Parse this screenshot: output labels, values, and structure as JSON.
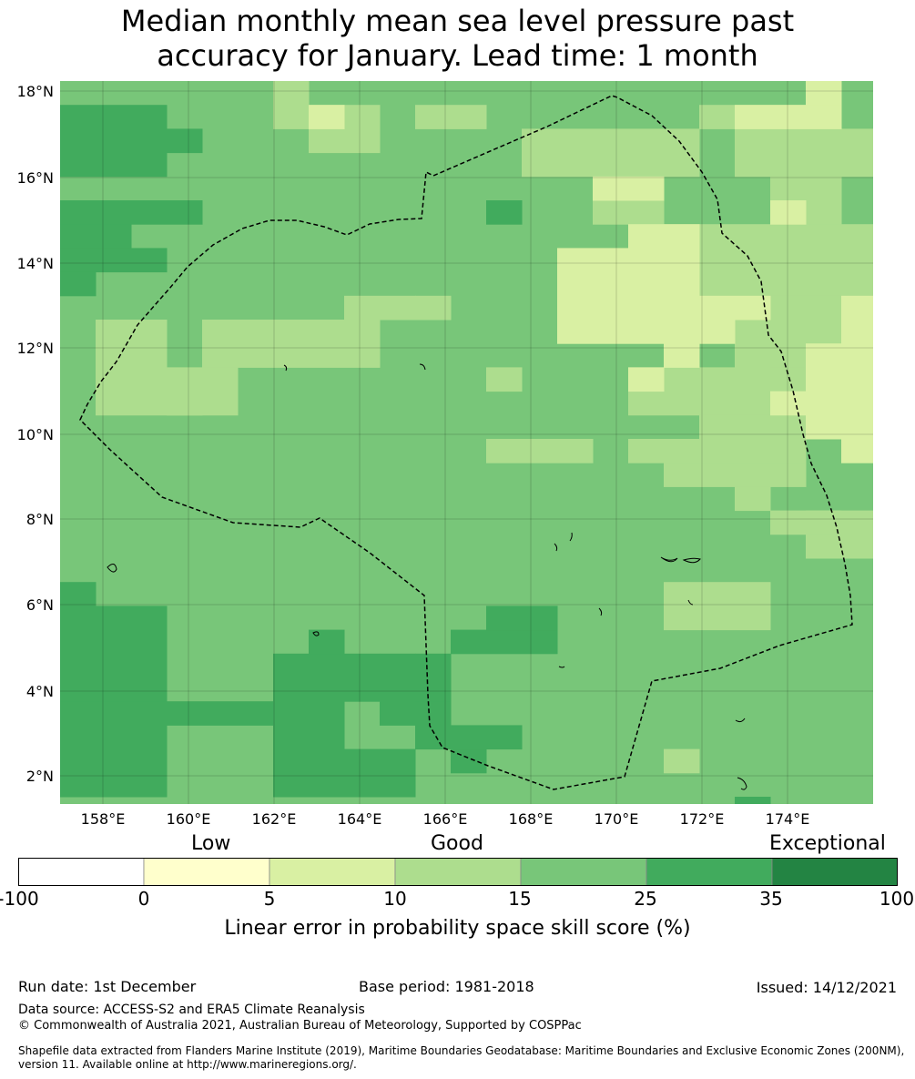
{
  "title_line1": "Median monthly mean sea level pressure past",
  "title_line2": "accuracy for January. Lead time: 1 month",
  "map": {
    "lat_labels": [
      "18°N",
      "16°N",
      "14°N",
      "12°N",
      "10°N",
      "8°N",
      "6°N",
      "4°N",
      "2°N"
    ],
    "lon_labels": [
      "158°E",
      "160°E",
      "162°E",
      "164°E",
      "166°E",
      "168°E",
      "170°E",
      "172°E",
      "174°E"
    ]
  },
  "chart_data": {
    "type": "heatmap",
    "title": "Median monthly mean sea level pressure past accuracy for January. Lead time: 1 month",
    "x_range_deg_E": [
      157.0,
      176.0
    ],
    "y_range_deg_N": [
      1.4,
      18.3
    ],
    "cell_size_deg": 0.83,
    "legend_categories": [
      "Low",
      "Good",
      "Exceptional"
    ],
    "bins": [
      {
        "range": [
          -100,
          0
        ],
        "color": "#ffffff"
      },
      {
        "range": [
          0,
          5
        ],
        "color": "#ffffcc"
      },
      {
        "range": [
          5,
          10
        ],
        "color": "#d9f0a3"
      },
      {
        "range": [
          10,
          15
        ],
        "color": "#addd8e"
      },
      {
        "range": [
          15,
          25
        ],
        "color": "#78c679"
      },
      {
        "range": [
          25,
          35
        ],
        "color": "#41ab5d"
      },
      {
        "range": [
          35,
          100
        ],
        "color": "#238443"
      }
    ],
    "colorbar_ticks": [
      "-100",
      "0",
      "5",
      "10",
      "15",
      "25",
      "35",
      "100"
    ],
    "colorbar_label": "Linear error in probability space skill score (%)",
    "dominant_bin_over_domain": "15-25"
  },
  "footer": {
    "run_date": "Run date: 1st December",
    "base_period": "Base period: 1981-2018",
    "issued": "Issued: 14/12/2021",
    "data_source": "Data source: ACCESS-S2 and ERA5 Climate Reanalysis",
    "copyright": "© Commonwealth of Australia 2021, Australian Bureau of Meteorology, Supported by COSPPac",
    "shapefile_line1": "Shapefile data extracted from Flanders Marine Institute (2019), Maritime Boundaries Geodatabase: Maritime Boundaries and Exclusive Economic Zones (200NM),",
    "shapefile_line2": "version 11. Available online at http://www.marineregions.org/."
  }
}
